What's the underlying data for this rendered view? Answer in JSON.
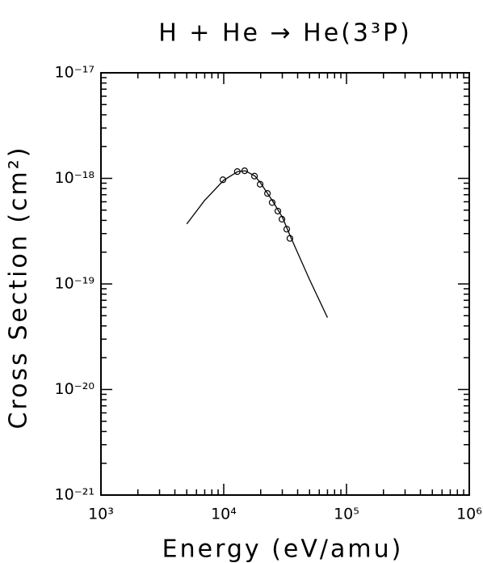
{
  "chart_data": {
    "type": "line",
    "title": "H + He → He(3³P)",
    "x_label": "Energy (eV/amu)",
    "y_label": "Cross Section (cm²)",
    "x_scale": "log",
    "y_scale": "log",
    "xlim": [
      1000,
      1000000
    ],
    "ylim": [
      1e-21,
      1e-17
    ],
    "xticks": [
      {
        "value": 1000,
        "label": "10³"
      },
      {
        "value": 10000,
        "label": "10⁴"
      },
      {
        "value": 100000,
        "label": "10⁵"
      },
      {
        "value": 1000000,
        "label": "10⁶"
      }
    ],
    "yticks": [
      {
        "value": 1e-21,
        "label": "10⁻²¹"
      },
      {
        "value": 1e-20,
        "label": "10⁻²⁰"
      },
      {
        "value": 1e-19,
        "label": "10⁻¹⁹"
      },
      {
        "value": 1e-18,
        "label": "10⁻¹⁸"
      },
      {
        "value": 1e-17,
        "label": "10⁻¹⁷"
      }
    ],
    "series": [
      {
        "style": "line",
        "color": "#000000",
        "x": [
          5000,
          7000,
          10000,
          13000,
          15000,
          18000,
          20000,
          25000,
          30000,
          35000,
          50000,
          70000
        ],
        "values": [
          3.7e-19,
          6.2e-19,
          9.6e-19,
          1.16e-18,
          1.18e-18,
          1.05e-18,
          9e-19,
          6.1e-19,
          4.3e-19,
          2.8e-19,
          1.1e-19,
          4.8e-20
        ]
      },
      {
        "style": "markers",
        "color": "#000000",
        "x": [
          9850,
          12900,
          14800,
          17800,
          19800,
          22700,
          24800,
          27600,
          29800,
          32600,
          34600
        ],
        "values": [
          9.7e-19,
          1.16e-18,
          1.18e-18,
          1.05e-18,
          8.8e-19,
          7.2e-19,
          5.9e-19,
          4.9e-19,
          4.1e-19,
          3.3e-19,
          2.7e-19
        ]
      }
    ]
  }
}
